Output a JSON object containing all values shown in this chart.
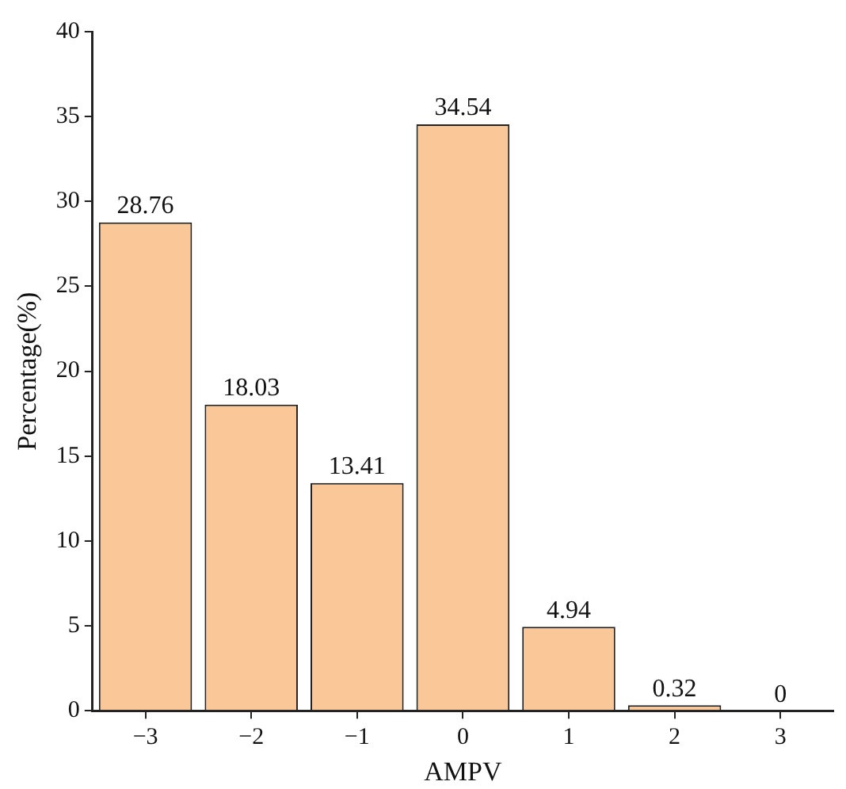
{
  "chart_data": {
    "type": "bar",
    "xlabel": "AMPV",
    "ylabel": "Percentage(%)",
    "categories": [
      "−3",
      "−2",
      "−1",
      "0",
      "1",
      "2",
      "3"
    ],
    "values": [
      28.76,
      18.03,
      13.41,
      34.54,
      4.94,
      0.32,
      0
    ],
    "color": "#fac898",
    "ylim": [
      0,
      40
    ],
    "yticks": [
      0,
      5,
      10,
      15,
      20,
      25,
      30,
      35,
      40
    ],
    "data_labels": true,
    "value_labels": [
      "28.76",
      "18.03",
      "13.41",
      "34.54",
      "4.94",
      "0.32",
      "0"
    ],
    "grid": false,
    "legend": false
  }
}
